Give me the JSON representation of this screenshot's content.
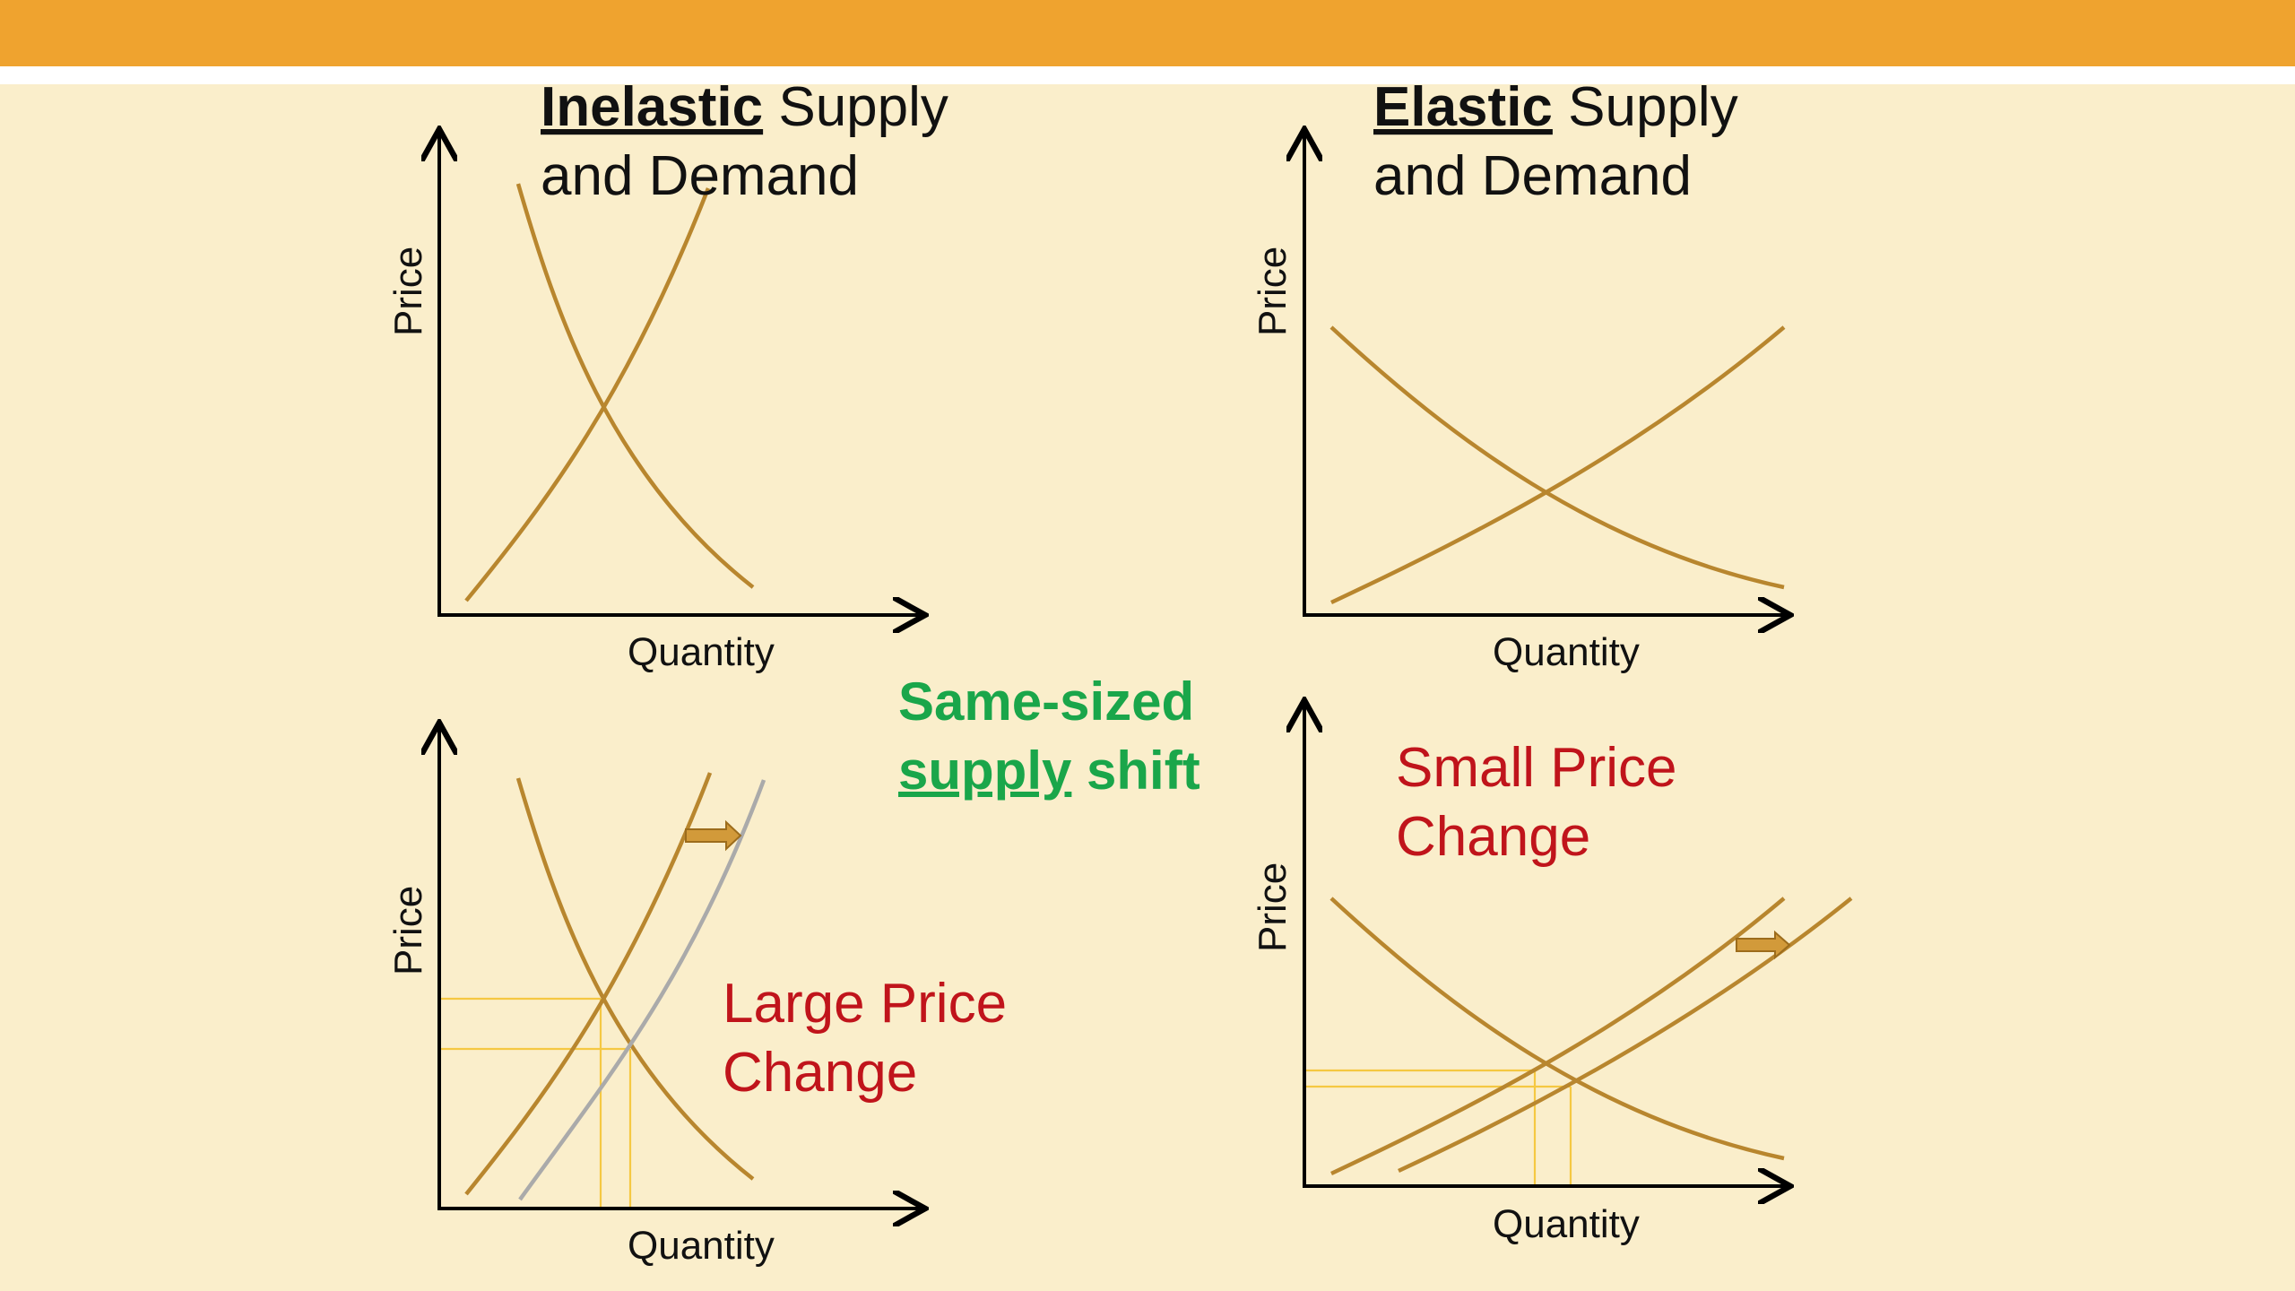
{
  "slide": {
    "accent_color": "#efa32f",
    "background_color": "#faeecb",
    "curve_color": "#b8862e",
    "shifted_curve_color": "#aaaaaa",
    "highlight_text_color": "#c0141b",
    "note_text_color": "#1aa64a"
  },
  "panels": {
    "inelastic": {
      "title_strong": "Inelastic",
      "title_rest_1": " Supply",
      "title_line_2": "and Demand",
      "y_label": "Price",
      "x_label": "Quantity"
    },
    "elastic": {
      "title_strong": "Elastic",
      "title_rest_1": " Supply",
      "title_line_2": "and Demand",
      "y_label": "Price",
      "x_label": "Quantity"
    },
    "inelastic_shift": {
      "y_label": "Price",
      "x_label": "Quantity",
      "note_line_1": "Large Price",
      "note_line_2": "Change"
    },
    "elastic_shift": {
      "y_label": "Price",
      "x_label": "Quantity",
      "note_line_1": "Small Price",
      "note_line_2": "Change"
    }
  },
  "center_note": {
    "line_1": "Same-sized",
    "line_2_underlined": "supply",
    "line_2_rest": " shift"
  }
}
